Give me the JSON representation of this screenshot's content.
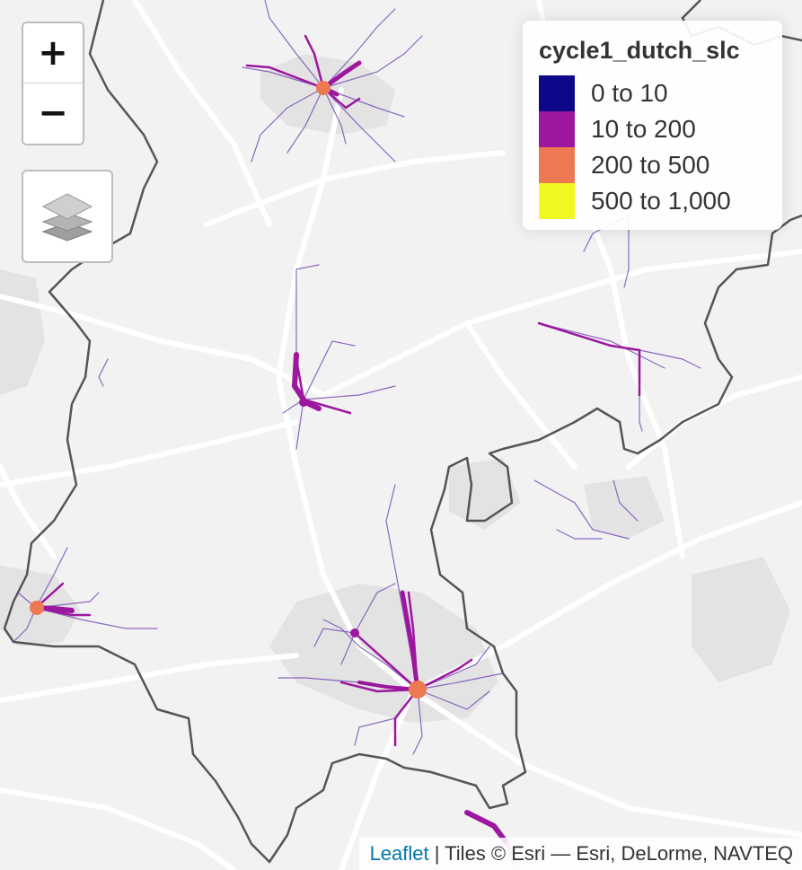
{
  "map": {
    "colors": {
      "background": "#f2f2f2",
      "roads": "#ffffff",
      "urban": "#e2e2e2",
      "boundary": "#555555"
    }
  },
  "zoom": {
    "in_label": "+",
    "out_label": "−"
  },
  "layers_control": {
    "icon": "layers-icon"
  },
  "legend": {
    "title": "cycle1_dutch_slc",
    "items": [
      {
        "label": "0 to 10",
        "color": "#0d0887"
      },
      {
        "label": "10 to 200",
        "color": "#9c179e"
      },
      {
        "label": "200 to 500",
        "color": "#ed7953"
      },
      {
        "label": "500 to 1,000",
        "color": "#f0f921"
      }
    ]
  },
  "attribution": {
    "leaflet_link": "Leaflet",
    "text": " | Tiles © Esri — Esri, DeLorme, NAVTEQ"
  }
}
